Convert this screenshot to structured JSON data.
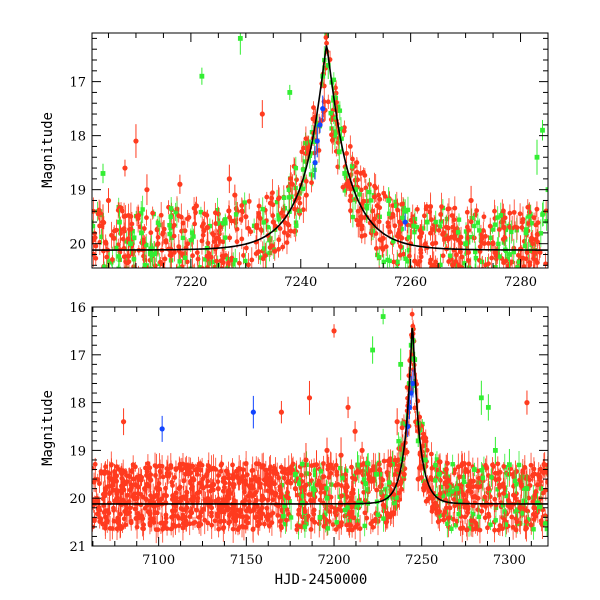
{
  "colors": {
    "red": "#ff3b1f",
    "green": "#33ee33",
    "blue": "#1144ff",
    "model": "#000000"
  },
  "chart_data": [
    {
      "type": "scatter",
      "panel": "top",
      "xlabel": "",
      "ylabel": "Magnitude",
      "xlim": [
        7202,
        7285
      ],
      "ylim": [
        20.45,
        16.1
      ],
      "x_ticks": [
        7220,
        7240,
        7260,
        7280
      ],
      "y_ticks": [
        17,
        18,
        19,
        20
      ],
      "model": {
        "t0": 7244.7,
        "baseline_mag": 20.12,
        "peak_mag": 16.3,
        "tau": 4.2
      },
      "series": [
        {
          "name": "red",
          "color": "red",
          "points": [
            [
              7204,
              19.6
            ],
            [
              7205,
              19.2
            ],
            [
              7206,
              19.9
            ],
            [
              7208,
              18.6
            ],
            [
              7210,
              18.1
            ],
            [
              7212,
              19.0
            ],
            [
              7214,
              20.0
            ],
            [
              7216,
              20.1
            ],
            [
              7218,
              18.9
            ],
            [
              7221,
              19.3
            ],
            [
              7223,
              19.7
            ],
            [
              7225,
              19.9
            ],
            [
              7227,
              18.8
            ],
            [
              7228,
              19.1
            ],
            [
              7230,
              19.5
            ],
            [
              7232,
              19.7
            ],
            [
              7233,
              17.6
            ],
            [
              7235,
              19.6
            ],
            [
              7237,
              19.5
            ],
            [
              7239,
              19.2
            ],
            [
              7241,
              19.1
            ],
            [
              7249,
              19.2
            ],
            [
              7251,
              19.5
            ],
            [
              7253,
              19.6
            ],
            [
              7255,
              19.9
            ],
            [
              7258,
              19.6
            ],
            [
              7260,
              20.0
            ],
            [
              7262,
              19.8
            ],
            [
              7264,
              20.0
            ],
            [
              7266,
              19.8
            ],
            [
              7268,
              19.9
            ],
            [
              7271,
              19.2
            ],
            [
              7273,
              19.9
            ],
            [
              7275,
              20.0
            ],
            [
              7277,
              19.7
            ],
            [
              7280,
              20.1
            ],
            [
              7282,
              19.9
            ]
          ]
        },
        {
          "name": "green",
          "color": "green",
          "points": [
            [
              7204,
              18.7
            ],
            [
              7207,
              19.6
            ],
            [
              7209,
              20.0
            ],
            [
              7211,
              19.8
            ],
            [
              7213,
              20.2
            ],
            [
              7222,
              16.9
            ],
            [
              7229,
              16.2
            ],
            [
              7238,
              17.2
            ],
            [
              7243,
              17.8
            ],
            [
              7244,
              16.9
            ],
            [
              7245,
              16.7
            ],
            [
              7246,
              17.3
            ],
            [
              7247,
              18.3
            ],
            [
              7248,
              18.7
            ],
            [
              7250,
              19.0
            ],
            [
              7252,
              19.3
            ],
            [
              7256,
              19.2
            ],
            [
              7259,
              19.4
            ],
            [
              7263,
              19.6
            ],
            [
              7270,
              20.0
            ],
            [
              7278,
              20.2
            ],
            [
              7281,
              19.8
            ],
            [
              7283,
              18.4
            ],
            [
              7284,
              17.9
            ],
            [
              7285,
              19.0
            ]
          ]
        },
        {
          "name": "blue",
          "color": "blue",
          "points": [
            [
              7242.6,
              18.5
            ],
            [
              7243.0,
              18.1
            ],
            [
              7243.5,
              17.8
            ],
            [
              7244.0,
              17.5
            ],
            [
              7259.0,
              19.6
            ]
          ]
        }
      ]
    },
    {
      "type": "scatter",
      "panel": "bottom",
      "xlabel": "HJD-2450000",
      "ylabel": "Magnitude",
      "xlim": [
        7062,
        7322
      ],
      "ylim": [
        21,
        16
      ],
      "x_ticks": [
        7100,
        7150,
        7200,
        7250,
        7300
      ],
      "y_ticks": [
        16,
        17,
        18,
        19,
        20,
        21
      ],
      "model": {
        "t0": 7244.7,
        "baseline_mag": 20.12,
        "peak_mag": 16.3,
        "tau": 4.2
      },
      "series": [
        {
          "name": "red",
          "color": "red",
          "points": [
            [
              7066,
              20.2
            ],
            [
              7072,
              19.9
            ],
            [
              7078,
              20.1
            ],
            [
              7080,
              18.4
            ],
            [
              7086,
              20.0
            ],
            [
              7092,
              19.8
            ],
            [
              7098,
              20.3
            ],
            [
              7104,
              20.1
            ],
            [
              7110,
              20.0
            ],
            [
              7116,
              20.2
            ],
            [
              7122,
              19.9
            ],
            [
              7128,
              20.1
            ],
            [
              7134,
              19.8
            ],
            [
              7140,
              20.0
            ],
            [
              7146,
              19.6
            ],
            [
              7152,
              19.9
            ],
            [
              7158,
              19.7
            ],
            [
              7164,
              19.6
            ],
            [
              7170,
              18.2
            ],
            [
              7172,
              19.4
            ],
            [
              7178,
              19.8
            ],
            [
              7184,
              19.2
            ],
            [
              7186,
              17.9
            ],
            [
              7190,
              19.3
            ],
            [
              7196,
              19.0
            ],
            [
              7200,
              16.5
            ],
            [
              7204,
              19.1
            ],
            [
              7208,
              18.1
            ],
            [
              7212,
              18.6
            ],
            [
              7216,
              19.0
            ],
            [
              7220,
              19.6
            ],
            [
              7226,
              19.4
            ],
            [
              7232,
              19.3
            ],
            [
              7236,
              18.4
            ],
            [
              7240,
              19.5
            ],
            [
              7248,
              19.6
            ],
            [
              7254,
              19.8
            ],
            [
              7260,
              20.0
            ],
            [
              7264,
              19.4
            ],
            [
              7270,
              19.9
            ],
            [
              7276,
              20.1
            ],
            [
              7282,
              20.0
            ],
            [
              7288,
              19.8
            ],
            [
              7294,
              19.6
            ],
            [
              7300,
              20.1
            ],
            [
              7306,
              20.2
            ],
            [
              7310,
              18.0
            ],
            [
              7314,
              20.2
            ]
          ]
        },
        {
          "name": "green",
          "color": "green",
          "points": [
            [
              7178,
              19.5
            ],
            [
              7182,
              20.1
            ],
            [
              7188,
              19.8
            ],
            [
              7192,
              20.4
            ],
            [
              7196,
              20.0
            ],
            [
              7214,
              20.1
            ],
            [
              7218,
              19.7
            ],
            [
              7222,
              16.9
            ],
            [
              7224,
              19.5
            ],
            [
              7228,
              16.2
            ],
            [
              7238,
              17.2
            ],
            [
              7243,
              17.6
            ],
            [
              7244,
              16.8
            ],
            [
              7245,
              16.7
            ],
            [
              7246,
              17.1
            ],
            [
              7248,
              18.8
            ],
            [
              7252,
              19.2
            ],
            [
              7260,
              19.5
            ],
            [
              7270,
              19.8
            ],
            [
              7280,
              19.4
            ],
            [
              7284,
              17.9
            ],
            [
              7288,
              18.1
            ],
            [
              7292,
              19.0
            ],
            [
              7300,
              19.3
            ],
            [
              7310,
              19.8
            ],
            [
              7316,
              20.1
            ]
          ]
        },
        {
          "name": "blue",
          "color": "blue",
          "points": [
            [
              7102,
              18.55
            ],
            [
              7154,
              18.2
            ],
            [
              7242,
              18.5
            ],
            [
              7243,
              18.1
            ],
            [
              7244,
              17.8
            ],
            [
              7245,
              17.6
            ]
          ]
        }
      ]
    }
  ]
}
